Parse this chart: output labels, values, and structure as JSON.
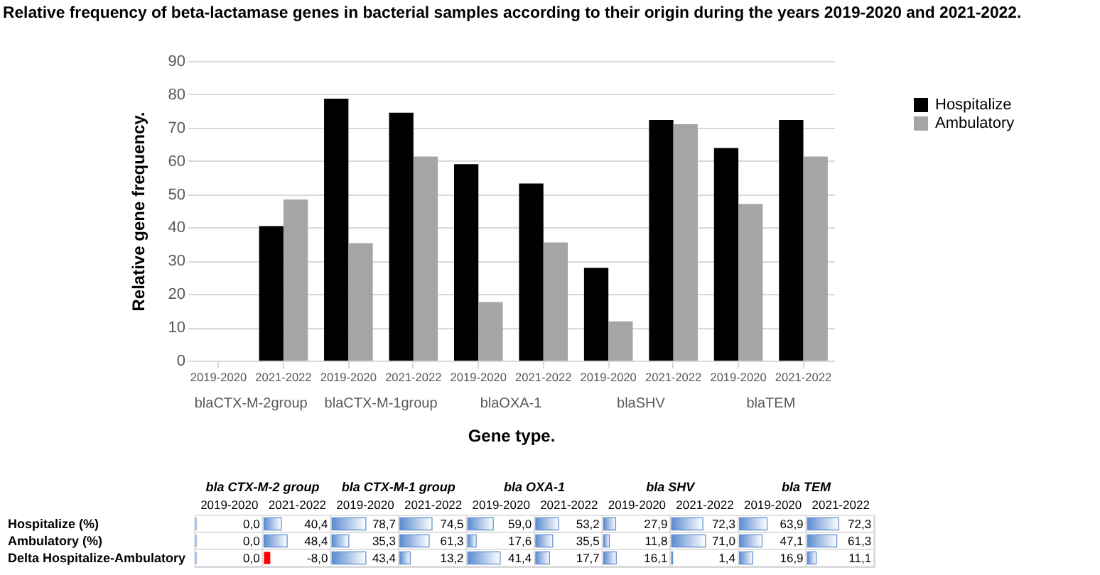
{
  "chart_data": [
    {
      "type": "bar",
      "title": "Relative frequency of beta-lactamase genes in bacterial samples according to their origin during the years 2019-2020 and 2021-2022.",
      "xlabel": "Gene type.",
      "ylabel": "Relative gene frequency.",
      "categories": [
        "2019-2020",
        "2021-2022",
        "2019-2020",
        "2021-2022",
        "2019-2020",
        "2021-2022",
        "2019-2020",
        "2021-2022",
        "2019-2020",
        "2021-2022"
      ],
      "annotations": [
        "blaCTX-M-2group",
        "blaCTX-M-1group",
        "blaOXA-1",
        "blaSHV",
        "blaTEM"
      ],
      "series": [
        {
          "name": "Hospitalize",
          "color": "#000000",
          "values": [
            0,
            40.4,
            78.7,
            74.5,
            59.0,
            53.2,
            27.9,
            72.3,
            63.9,
            72.3
          ]
        },
        {
          "name": "Ambulatory",
          "color": "#a5a5a5",
          "values": [
            0,
            48.4,
            35.3,
            61.3,
            17.6,
            35.5,
            11.8,
            71.0,
            47.1,
            61.3
          ]
        }
      ],
      "ylim": [
        0,
        90
      ],
      "yticks": [
        0,
        10,
        20,
        30,
        40,
        50,
        60,
        70,
        80,
        90
      ],
      "grid": "y",
      "legend": "right"
    },
    {
      "type": "heatmap",
      "categories": [
        "2019-2020",
        "2021-2022",
        "2019-2020",
        "2021-2022",
        "2019-2020",
        "2021-2022",
        "2019-2020",
        "2021-2022",
        "2019-2020",
        "2021-2022"
      ],
      "annotations": [
        "bla CTX-M-2 group",
        "bla CTX-M-1 group",
        "bla OXA-1",
        "bla SHV",
        "bla TEM"
      ],
      "y_categories": [
        "Hospitalize (%)",
        "Ambulatory (%)",
        "Delta Hospitalize-Ambulatory"
      ],
      "cells": [
        [
          0.0,
          40.4,
          78.7,
          74.5,
          59.0,
          53.2,
          27.9,
          72.3,
          63.9,
          72.3
        ],
        [
          0.0,
          48.4,
          35.3,
          61.3,
          17.6,
          35.5,
          11.8,
          71.0,
          47.1,
          61.3
        ],
        [
          0.0,
          -8.0,
          43.4,
          13.2,
          41.4,
          17.7,
          16.1,
          1.4,
          16.9,
          11.1
        ]
      ],
      "cell_labels": [
        [
          "0,0",
          "40,4",
          "78,7",
          "74,5",
          "59,0",
          "53,2",
          "27,9",
          "72,3",
          "63,9",
          "72,3"
        ],
        [
          "0,0",
          "48,4",
          "35,3",
          "61,3",
          "17,6",
          "35,5",
          "11,8",
          "71,0",
          "47,1",
          "61,3"
        ],
        [
          "0,0",
          "-8,0",
          "43,4",
          "13,2",
          "41,4",
          "17,7",
          "16,1",
          "1,4",
          "16,9",
          "11,1"
        ]
      ]
    }
  ]
}
